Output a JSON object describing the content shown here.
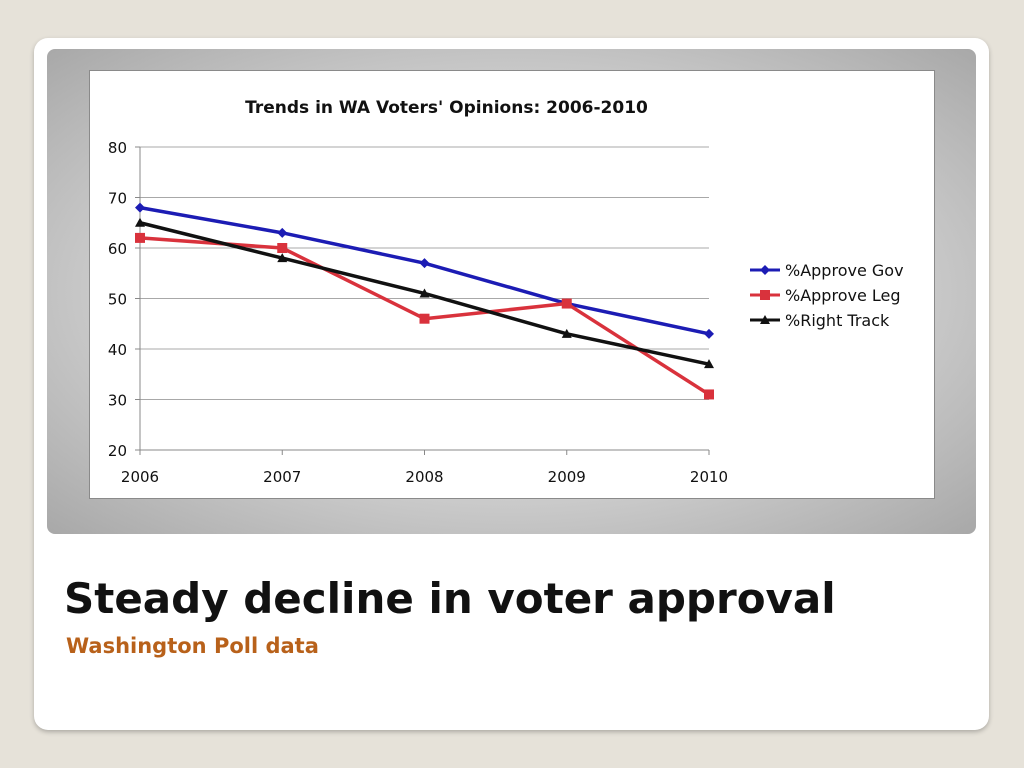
{
  "slide": {
    "title": "Steady decline in voter approval",
    "subtitle": "Washington Poll data",
    "subtitle_color": "#b8611a"
  },
  "chart_data": {
    "type": "line",
    "title": "Trends in WA Voters' Opinions: 2006-2010",
    "xlabel": "",
    "ylabel": "",
    "x": [
      2006,
      2007,
      2008,
      2009,
      2010
    ],
    "ylim": [
      20,
      80
    ],
    "yticks": [
      20,
      30,
      40,
      50,
      60,
      70,
      80
    ],
    "grid": true,
    "legend_position": "right",
    "series": [
      {
        "name": "%Approve Gov",
        "values": [
          68,
          63,
          57,
          49,
          43
        ],
        "color": "#1c1cb4",
        "marker": "diamond"
      },
      {
        "name": "%Approve Leg",
        "values": [
          62,
          60,
          46,
          49,
          31
        ],
        "color": "#d9323c",
        "marker": "square"
      },
      {
        "name": "%Right Track",
        "values": [
          65,
          58,
          51,
          43,
          37
        ],
        "color": "#111111",
        "marker": "triangle"
      }
    ]
  }
}
